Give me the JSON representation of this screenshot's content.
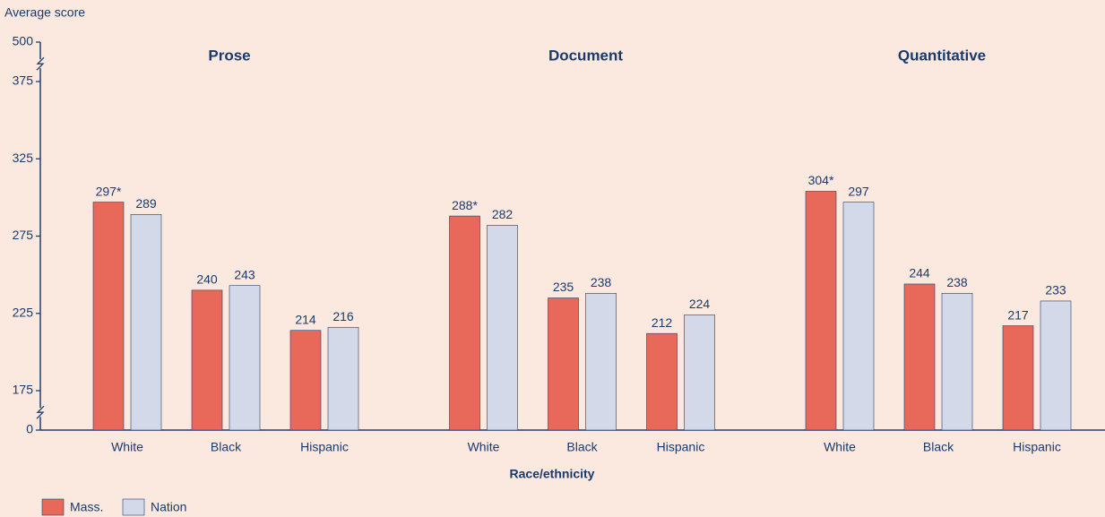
{
  "chart_data": {
    "type": "bar",
    "y_label": "Average score",
    "x_label": "Race/ethnicity",
    "ylim": [
      0,
      500
    ],
    "yticks": [
      0,
      175,
      225,
      275,
      325,
      375,
      500
    ],
    "axis_breaks": [
      [
        0,
        175
      ],
      [
        375,
        500
      ]
    ],
    "series": [
      {
        "name": "Mass.",
        "color": "#e8695a"
      },
      {
        "name": "Nation",
        "color": "#d3d9e8"
      }
    ],
    "panels": [
      {
        "title": "Prose",
        "categories": [
          "White",
          "Black",
          "Hispanic"
        ],
        "values": [
          [
            297,
            240,
            214
          ],
          [
            289,
            243,
            216
          ]
        ],
        "value_labels": [
          [
            "297*",
            "240",
            "214"
          ],
          [
            "289",
            "243",
            "216"
          ]
        ]
      },
      {
        "title": "Document",
        "categories": [
          "White",
          "Black",
          "Hispanic"
        ],
        "values": [
          [
            288,
            235,
            212
          ],
          [
            282,
            238,
            224
          ]
        ],
        "value_labels": [
          [
            "288*",
            "235",
            "212"
          ],
          [
            "282",
            "238",
            "224"
          ]
        ]
      },
      {
        "title": "Quantitative",
        "categories": [
          "White",
          "Black",
          "Hispanic"
        ],
        "values": [
          [
            304,
            244,
            217
          ],
          [
            297,
            238,
            233
          ]
        ],
        "value_labels": [
          [
            "304*",
            "244",
            "217"
          ],
          [
            "297",
            "238",
            "233"
          ]
        ]
      }
    ]
  }
}
